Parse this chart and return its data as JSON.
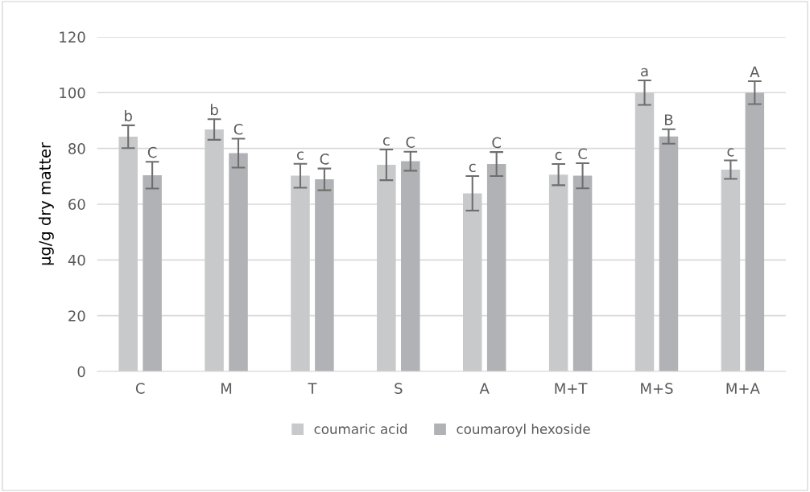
{
  "chart_data": {
    "type": "bar",
    "ylabel": "µg/g dry matter",
    "categories": [
      "C",
      "M",
      "T",
      "S",
      "A",
      "M+T",
      "M+S",
      "M+A"
    ],
    "series": [
      {
        "name": "coumaric acid",
        "color": "#c8c9cb",
        "values": [
          84.2,
          86.8,
          70.2,
          74.1,
          63.9,
          70.6,
          100,
          72.4
        ],
        "errors": [
          4.1,
          3.7,
          4.3,
          5.5,
          6.2,
          3.8,
          4.4,
          3.3
        ]
      },
      {
        "name": "coumaroyl hexoside",
        "color": "#b1b2b5",
        "values": [
          70.4,
          78.3,
          68.9,
          75.4,
          74.4,
          70.2,
          84.3,
          100
        ],
        "errors": [
          4.8,
          5.2,
          3.9,
          3.4,
          4.3,
          4.5,
          2.6,
          4.1
        ]
      }
    ],
    "ylim": [
      0,
      120
    ],
    "yticks": [
      0,
      20,
      40,
      60,
      80,
      100,
      120
    ],
    "grid": "y",
    "legend": "bottom",
    "annotations": [
      "b",
      "C",
      "b",
      "C",
      "c",
      "C",
      "c",
      "C",
      "c",
      "C",
      "c",
      "C",
      "a",
      "B",
      "c",
      "A"
    ]
  }
}
